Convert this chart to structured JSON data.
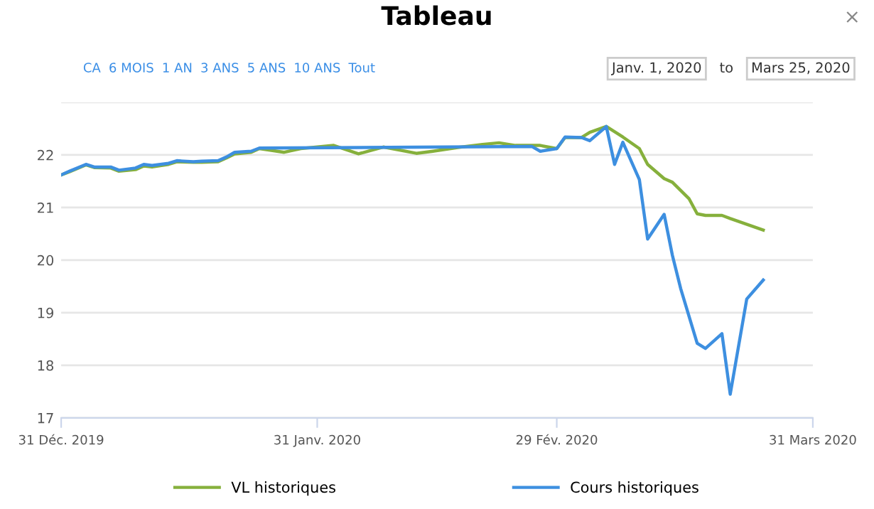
{
  "chart_data": {
    "type": "line",
    "title": "Tableau",
    "annotations": [
      "CA",
      "6 MOIS",
      "1 AN",
      "3 ANS",
      "5 ANS",
      "10 ANS",
      "Tout",
      "Janv. 1, 2020",
      "to",
      "Mars 25, 2020",
      "×"
    ],
    "series": [
      {
        "name": "VL historiques",
        "color": "#86b03c",
        "x": [
          "2019-12-31",
          "2020-01-01",
          "2020-01-03",
          "2020-01-04",
          "2020-01-06",
          "2020-01-07",
          "2020-01-09",
          "2020-01-10",
          "2020-01-11",
          "2020-01-13",
          "2020-01-14",
          "2020-01-16",
          "2020-01-17",
          "2020-01-19",
          "2020-01-20",
          "2020-01-21",
          "2020-01-23",
          "2020-01-24",
          "2020-01-27",
          "2020-01-29",
          "2020-02-02",
          "2020-02-05",
          "2020-02-08",
          "2020-02-12",
          "2020-02-14",
          "2020-02-17",
          "2020-02-20",
          "2020-02-22",
          "2020-02-24",
          "2020-02-27",
          "2020-02-29",
          "2020-03-01",
          "2020-03-03",
          "2020-03-04",
          "2020-03-06",
          "2020-03-08",
          "2020-03-10",
          "2020-03-11",
          "2020-03-13",
          "2020-03-14",
          "2020-03-16",
          "2020-03-17",
          "2020-03-18",
          "2020-03-20",
          "2020-03-21",
          "2020-03-25"
        ],
        "values": [
          21.62,
          21.68,
          21.81,
          21.76,
          21.75,
          21.69,
          21.72,
          21.79,
          21.77,
          21.82,
          21.87,
          21.86,
          21.86,
          21.87,
          21.94,
          22.02,
          22.05,
          22.12,
          22.05,
          22.12,
          22.18,
          22.02,
          22.15,
          22.03,
          22.07,
          22.14,
          22.2,
          22.23,
          22.18,
          22.18,
          22.12,
          22.33,
          22.33,
          22.43,
          22.54,
          22.34,
          22.12,
          21.82,
          21.55,
          21.48,
          21.17,
          20.88,
          20.85,
          20.85,
          20.79,
          20.57
        ]
      },
      {
        "name": "Cours historiques",
        "color": "#3d8fe0",
        "x": [
          "2019-12-31",
          "2020-01-01",
          "2020-01-03",
          "2020-01-04",
          "2020-01-06",
          "2020-01-07",
          "2020-01-09",
          "2020-01-10",
          "2020-01-11",
          "2020-01-13",
          "2020-01-14",
          "2020-01-16",
          "2020-01-17",
          "2020-01-19",
          "2020-01-20",
          "2020-01-21",
          "2020-01-23",
          "2020-01-24",
          "2020-02-26",
          "2020-02-27",
          "2020-02-29",
          "2020-03-01",
          "2020-03-03",
          "2020-03-04",
          "2020-03-06",
          "2020-03-07",
          "2020-03-08",
          "2020-03-10",
          "2020-03-11",
          "2020-03-13",
          "2020-03-14",
          "2020-03-15",
          "2020-03-17",
          "2020-03-18",
          "2020-03-20",
          "2020-03-21",
          "2020-03-23",
          "2020-03-25"
        ],
        "values": [
          21.62,
          21.69,
          21.82,
          21.77,
          21.77,
          21.71,
          21.75,
          21.82,
          21.8,
          21.84,
          21.89,
          21.87,
          21.88,
          21.89,
          21.96,
          22.05,
          22.07,
          22.13,
          22.16,
          22.07,
          22.12,
          22.34,
          22.33,
          22.27,
          22.54,
          21.82,
          22.24,
          21.53,
          20.4,
          20.87,
          20.09,
          19.46,
          18.42,
          18.32,
          18.6,
          17.45,
          19.26,
          19.62
        ]
      }
    ],
    "xlim": [
      "2019-12-31",
      "2020-03-31"
    ],
    "xticks": [
      {
        "value": "2019-12-31",
        "label": "31 Déc. 2019"
      },
      {
        "value": "2020-01-31",
        "label": "31 Janv. 2020"
      },
      {
        "value": "2020-02-29",
        "label": "29 Fév. 2020"
      },
      {
        "value": "2020-03-31",
        "label": "31 Mars 2020"
      }
    ],
    "ylim": [
      17,
      23
    ],
    "yticks": [
      17,
      18,
      19,
      20,
      21,
      22,
      {
        "value": 23,
        "label": null
      }
    ],
    "grid": "y",
    "legend": "bottom",
    "marker": "none",
    "line_style": "solid"
  }
}
